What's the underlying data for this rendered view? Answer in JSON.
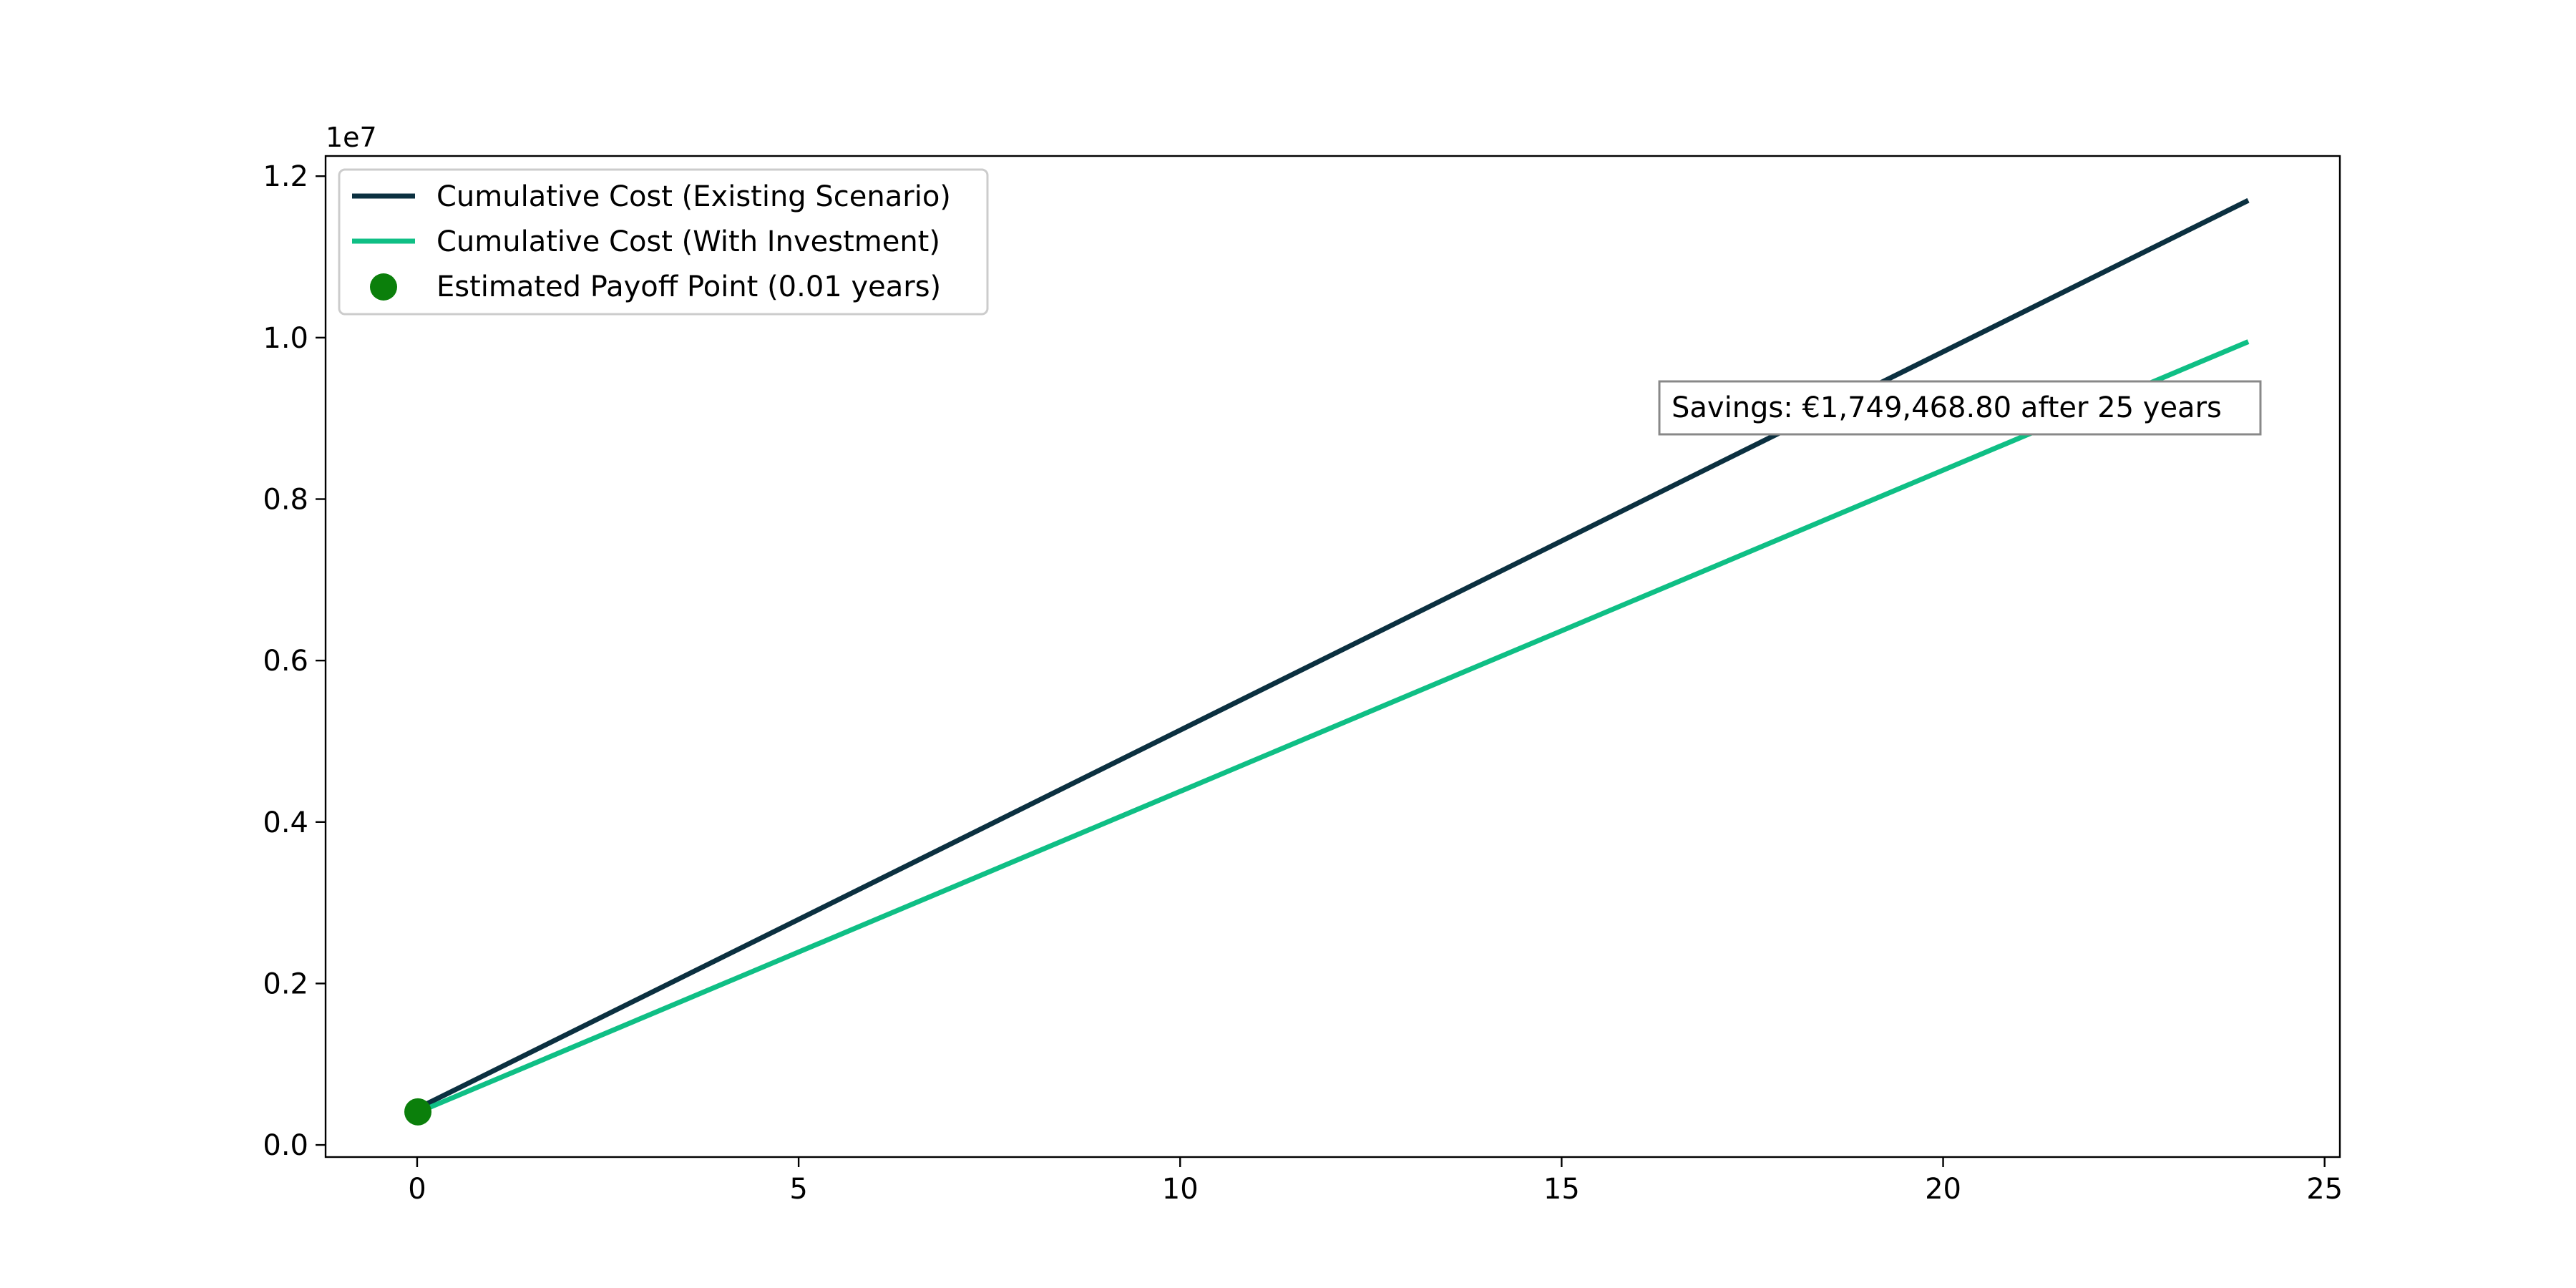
{
  "chart_data": {
    "type": "line",
    "title": "",
    "xlabel": "",
    "ylabel": "",
    "y_offset_label": "1e7",
    "xlim": [
      -1.2,
      25.2
    ],
    "ylim": [
      -0.015,
      1.225
    ],
    "x_ticks": [
      0,
      5,
      10,
      15,
      20,
      25
    ],
    "x_tick_labels": [
      "0",
      "5",
      "10",
      "15",
      "20",
      "25"
    ],
    "y_ticks": [
      0.0,
      0.2,
      0.4,
      0.6,
      0.8,
      1.0,
      1.2
    ],
    "y_tick_labels": [
      "0.0",
      "0.2",
      "0.4",
      "0.6",
      "0.8",
      "1.0",
      "1.2"
    ],
    "grid": false,
    "legend_position": "top-left",
    "series": [
      {
        "name": "Cumulative Cost (Existing Scenario)",
        "color": "#0b3040",
        "x": [
          0,
          24
        ],
        "y": [
          0.045,
          1.17
        ]
      },
      {
        "name": "Cumulative Cost (With Investment)",
        "color": "#0fbf85",
        "x": [
          0,
          24
        ],
        "y": [
          0.04,
          0.995
        ]
      }
    ],
    "points": [
      {
        "name": "Estimated Payoff Point (0.01 years)",
        "color": "#0b7f0b",
        "x": 0.01,
        "y": 0.041
      }
    ],
    "annotation": {
      "text": "Savings: €1,749,468.80 after 25 years",
      "color": "#0b3040"
    }
  }
}
